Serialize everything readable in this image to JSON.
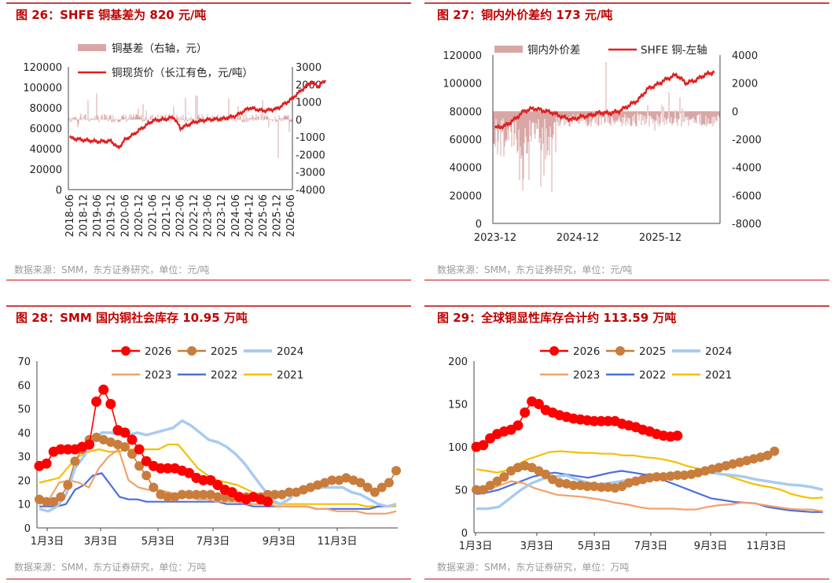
{
  "colors": {
    "title_red": "#c00000",
    "copper": "#e02020",
    "basis_bar": "#d9a6a6",
    "y2026": "#ff0000",
    "y2025": "#c87d3c",
    "y2024": "#a9cbf0",
    "y2023": "#f3a06b",
    "y2022": "#4a6ee0",
    "y2021": "#f5bf00"
  },
  "panels": [
    {
      "title": "图 26：SHFE 铜基差为 820 元/吨",
      "source": "数据来源：SMM，东方证券研究，单位：元/吨",
      "chart_data": {
        "type": "bar+line",
        "legend": [
          "铜基差（右轴，元）",
          "铜现货价（长江有色，元/吨）"
        ],
        "y_left": {
          "ticks": [
            "120000",
            "100000",
            "80000",
            "60000",
            "40000",
            "20000",
            "0"
          ],
          "range": [
            0,
            120000
          ]
        },
        "y_right": {
          "ticks": [
            "3000",
            "2000",
            "1000",
            "0",
            "-1000",
            "-2000",
            "-3000",
            "-4000"
          ],
          "range": [
            -4000,
            3000
          ]
        },
        "x_ticks": [
          "2018-06",
          "2018-12",
          "2019-06",
          "2019-12",
          "2020-06",
          "2020-12",
          "2021-06",
          "2021-12",
          "2022-06",
          "2022-12",
          "2023-06",
          "2023-12",
          "2024-06",
          "2024-12",
          "2025-06",
          "2025-12",
          "2026-06"
        ],
        "series": [
          {
            "name": "铜现货价（长江有色，元/吨）",
            "axis": "left",
            "points": [
              [
                0,
                50500
              ],
              [
                1,
                48500
              ],
              [
                2,
                47000
              ],
              [
                3,
                47500
              ],
              [
                3.5,
                40500
              ],
              [
                4,
                49000
              ],
              [
                4.5,
                53000
              ],
              [
                5,
                58000
              ],
              [
                6,
                67500
              ],
              [
                7,
                69000
              ],
              [
                7.5,
                71000
              ],
              [
                8,
                60000
              ],
              [
                9,
                66000
              ],
              [
                10,
                68500
              ],
              [
                11,
                69000
              ],
              [
                12,
                72000
              ],
              [
                13,
                80000
              ],
              [
                14,
                77000
              ],
              [
                15,
                79000
              ],
              [
                16,
                88000
              ],
              [
                17,
                100000
              ],
              [
                17.5,
                105000
              ],
              [
                18,
                101000
              ],
              [
                18.5,
                107000
              ]
            ]
          },
          {
            "name": "铜基差（右轴，元）",
            "axis": "right",
            "note": "daily basis bars around zero, range about -1600 to +1200"
          }
        ]
      }
    },
    {
      "title": "图 27：铜内外价差约 173 元/吨",
      "source": "数据来源：SMM，东方证券研究，单位：元/吨",
      "chart_data": {
        "type": "bar+line",
        "legend": [
          "铜内外价差",
          "SHFE 铜-左轴"
        ],
        "y_left": {
          "ticks": [
            "120000",
            "100000",
            "80000",
            "60000",
            "40000",
            "20000",
            "0"
          ],
          "range": [
            0,
            120000
          ]
        },
        "y_right": {
          "ticks": [
            "4000",
            "2000",
            "0",
            "-2000",
            "-4000",
            "-6000",
            "-8000"
          ],
          "range": [
            -8000,
            4000
          ]
        },
        "x_ticks": [
          "2023-12",
          "2024-12",
          "2025-12"
        ],
        "series": [
          {
            "name": "SHFE 铜-左轴",
            "axis": "left",
            "points": [
              [
                0,
                68000
              ],
              [
                0.5,
                69500
              ],
              [
                1,
                74000
              ],
              [
                1.5,
                80000
              ],
              [
                2,
                82000
              ],
              [
                2.5,
                80500
              ],
              [
                3,
                79000
              ],
              [
                3.5,
                76000
              ],
              [
                4,
                74000
              ],
              [
                4.5,
                76000
              ],
              [
                5,
                77000
              ],
              [
                5.5,
                79000
              ],
              [
                6,
                78500
              ],
              [
                6.5,
                80000
              ],
              [
                7,
                84000
              ],
              [
                7.5,
                88000
              ],
              [
                8,
                96000
              ],
              [
                8.5,
                99000
              ],
              [
                9,
                103000
              ],
              [
                9.5,
                106000
              ],
              [
                10,
                100000
              ],
              [
                10.5,
                102000
              ],
              [
                11,
                106000
              ],
              [
                11.5,
                108000
              ]
            ]
          },
          {
            "name": "铜内外价差",
            "axis": "right",
            "note": "daily spread bars, mostly -500 to -2000, dips to about -5600"
          }
        ]
      }
    },
    {
      "title": "图 28：SMM 国内铜社会库存 10.95 万吨",
      "source": "数据来源：SMM，东方证券研究，单位：万吨",
      "chart_data": {
        "type": "line",
        "x_ticks": [
          "1月3日",
          "3月3日",
          "5月3日",
          "7月3日",
          "9月3日",
          "11月3日"
        ],
        "y_ticks": [
          "70",
          "60",
          "50",
          "40",
          "30",
          "20",
          "10",
          "0"
        ],
        "ylim": [
          0,
          70
        ],
        "series": [
          {
            "name": "2026",
            "style": "dots",
            "values": [
              26,
              27,
              32,
              33,
              33,
              33,
              34,
              35,
              53,
              58,
              52,
              41,
              40,
              37,
              33,
              28,
              26,
              25,
              25,
              25,
              24,
              23,
              21,
              20,
              20,
              18,
              16,
              15,
              13,
              12,
              13,
              12,
              11
            ]
          },
          {
            "name": "2025",
            "style": "dots",
            "values": [
              12,
              11,
              11,
              13,
              18,
              28,
              33,
              37,
              38,
              37,
              36,
              35,
              34,
              31,
              26,
              22,
              17,
              14,
              13,
              13,
              14,
              14,
              14,
              14,
              14,
              13,
              13,
              13,
              13,
              13,
              13,
              13,
              14,
              14,
              14,
              15,
              15,
              16,
              17,
              18,
              19,
              20,
              20,
              21,
              20,
              19,
              17,
              15,
              17,
              19,
              24
            ]
          },
          {
            "name": "2024",
            "style": "line",
            "values": [
              8,
              7,
              9,
              14,
              25,
              30,
              36,
              40,
              40,
              39,
              39,
              40,
              39,
              40,
              41,
              42,
              45,
              43,
              40,
              37,
              36,
              34,
              31,
              27,
              22,
              17,
              12,
              10,
              12,
              16,
              17,
              17,
              17,
              17,
              17,
              15,
              14,
              12,
              10,
              9,
              10
            ]
          },
          {
            "name": "2023",
            "style": "line",
            "values": [
              10,
              12,
              19,
              20,
              19,
              17,
              25,
              30,
              33,
              20,
              17,
              16,
              16,
              15,
              14,
              13,
              12,
              12,
              11,
              11,
              11,
              10,
              10,
              10,
              9,
              9,
              9,
              9,
              8,
              8,
              7,
              7,
              7,
              6,
              6,
              6,
              7
            ]
          },
          {
            "name": "2022",
            "style": "line",
            "values": [
              9,
              9,
              9,
              10,
              16,
              18,
              22,
              23,
              18,
              13,
              12,
              12,
              11,
              11,
              11,
              11,
              11,
              11,
              11,
              11,
              11,
              10,
              10,
              10,
              9,
              9,
              9,
              9,
              9,
              9,
              9,
              8,
              8,
              8,
              8,
              8,
              8,
              8,
              9,
              9,
              10
            ]
          },
          {
            "name": "2021",
            "style": "line",
            "values": [
              19,
              20,
              21,
              26,
              30,
              32,
              33,
              32,
              32,
              33,
              33,
              33,
              33,
              35,
              35,
              30,
              25,
              22,
              20,
              19,
              18,
              16,
              14,
              12,
              10,
              10,
              10,
              10,
              10,
              10,
              10,
              10,
              10,
              9,
              9,
              9,
              9
            ]
          }
        ]
      }
    },
    {
      "title": "图 29：全球铜显性库存合计约 113.59 万吨",
      "source": "数据来源：SMM，东方证券研究，单位：万吨",
      "chart_data": {
        "type": "line",
        "x_ticks": [
          "1月3日",
          "3月3日",
          "5月3日",
          "7月3日",
          "9月3日",
          "11月3日"
        ],
        "y_ticks": [
          "200",
          "150",
          "100",
          "50",
          "0"
        ],
        "ylim": [
          0,
          200
        ],
        "series": [
          {
            "name": "2026",
            "style": "dots",
            "values": [
              100,
              102,
              110,
              115,
              118,
              120,
              125,
              140,
              153,
              150,
              143,
              140,
              137,
              135,
              133,
              132,
              131,
              130,
              130,
              130,
              130,
              127,
              125,
              123,
              120,
              118,
              115,
              113,
              112,
              113
            ]
          },
          {
            "name": "2025",
            "style": "dots",
            "values": [
              50,
              50,
              55,
              60,
              65,
              72,
              76,
              78,
              76,
              72,
              68,
              62,
              58,
              57,
              55,
              55,
              54,
              54,
              53,
              53,
              52,
              54,
              58,
              60,
              62,
              64,
              65,
              65,
              66,
              67,
              67,
              68,
              70,
              72,
              74,
              76,
              78,
              80,
              82,
              84,
              86,
              88,
              90,
              95
            ]
          },
          {
            "name": "2024",
            "style": "line",
            "values": [
              28,
              28,
              30,
              40,
              50,
              58,
              63,
              65,
              67,
              62,
              58,
              56,
              58,
              60,
              62,
              63,
              65,
              67,
              68,
              70,
              72,
              70,
              68,
              67,
              65,
              62,
              60,
              58,
              56,
              55,
              53,
              50
            ]
          },
          {
            "name": "2023",
            "style": "line",
            "values": [
              50,
              50,
              55,
              60,
              58,
              52,
              48,
              44,
              43,
              42,
              40,
              38,
              35,
              33,
              30,
              28,
              28,
              28,
              27,
              27,
              30,
              32,
              33,
              35,
              34,
              32,
              30,
              28,
              27,
              27,
              25
            ]
          },
          {
            "name": "2022",
            "style": "line",
            "values": [
              45,
              47,
              50,
              55,
              60,
              65,
              68,
              70,
              68,
              66,
              64,
              67,
              70,
              72,
              70,
              68,
              66,
              60,
              55,
              50,
              45,
              40,
              38,
              36,
              35,
              34,
              30,
              28,
              26,
              25,
              24,
              24
            ]
          },
          {
            "name": "2021",
            "style": "line",
            "values": [
              74,
              72,
              70,
              73,
              80,
              86,
              90,
              94,
              95,
              94,
              93,
              93,
              92,
              92,
              90,
              90,
              88,
              87,
              85,
              82,
              78,
              75,
              72,
              70,
              66,
              62,
              58,
              55,
              53,
              50,
              45,
              42,
              40,
              41
            ]
          }
        ]
      }
    }
  ]
}
